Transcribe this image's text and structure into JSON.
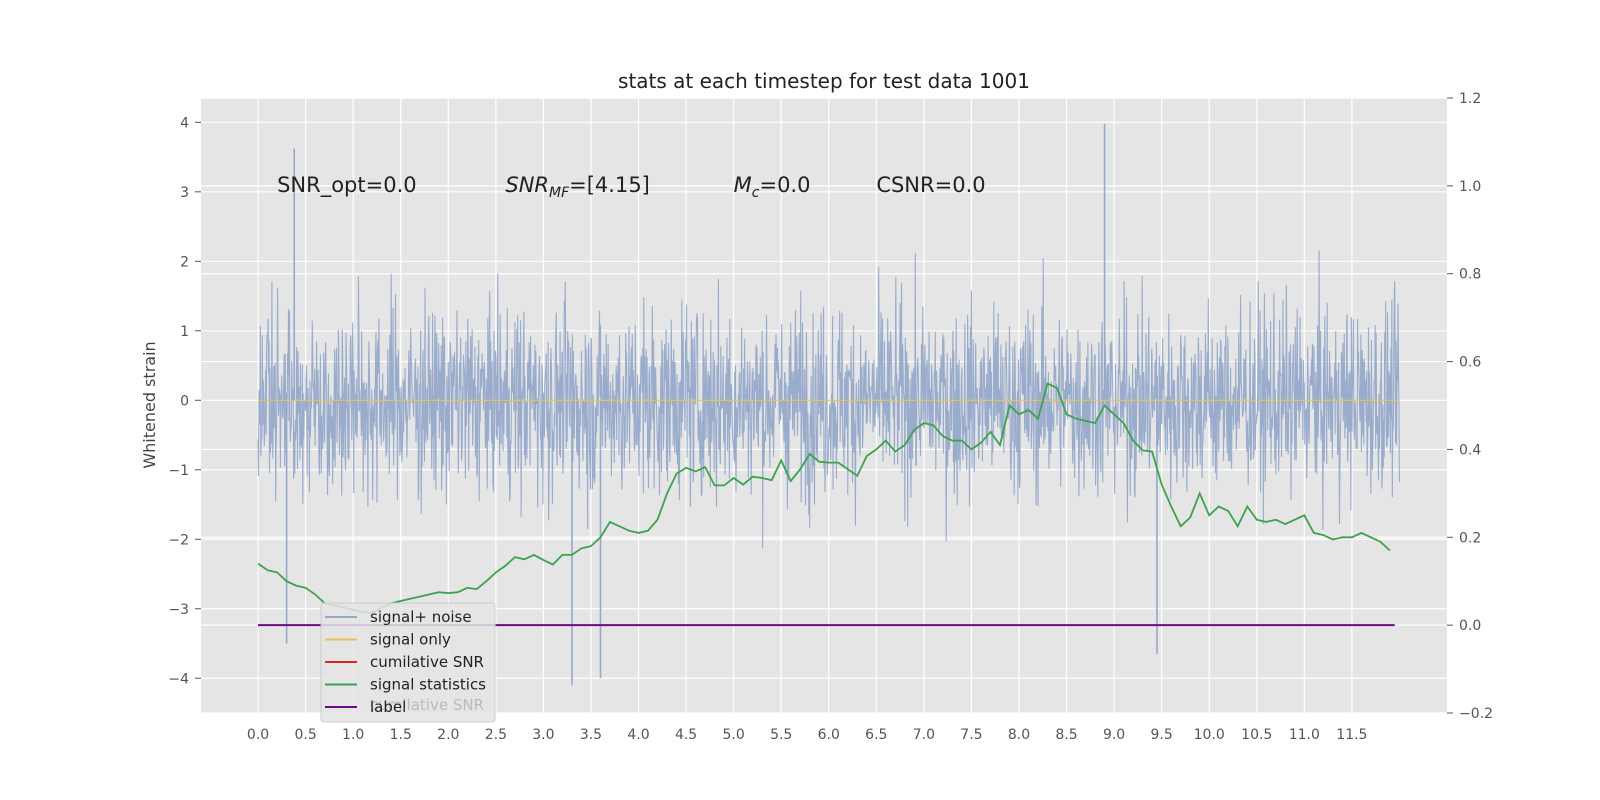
{
  "chart_data": {
    "type": "line",
    "title": "stats at each timestep for test data 1001",
    "ylabel": "Whitened strain",
    "xlabel": "",
    "xlim": [
      -0.6,
      12.5
    ],
    "ylim": [
      -4.5,
      4.35
    ],
    "y2lim": [
      -0.2,
      1.2
    ],
    "grid": true,
    "legend_placement": "lower-left",
    "x_ticks": [
      0.0,
      0.5,
      1.0,
      1.5,
      2.0,
      2.5,
      3.0,
      3.5,
      4.0,
      4.5,
      5.0,
      5.5,
      6.0,
      6.5,
      7.0,
      7.5,
      8.0,
      8.5,
      9.0,
      9.5,
      10.0,
      10.5,
      11.0,
      11.5
    ],
    "x_tick_labels": [
      "0.0",
      "0.5",
      "1.0",
      "1.5",
      "2.0",
      "2.5",
      "3.0",
      "3.5",
      "4.0",
      "4.5",
      "5.0",
      "5.5",
      "6.0",
      "6.5",
      "7.0",
      "7.5",
      "8.0",
      "8.5",
      "9.0",
      "9.5",
      "10.0",
      "10.5",
      "11.0",
      "11.5"
    ],
    "y_ticks": [
      4,
      3,
      2,
      1,
      0,
      -1,
      -2,
      -3,
      -4
    ],
    "y_tick_labels": [
      "4",
      "3",
      "2",
      "1",
      "0",
      "−1",
      "−2",
      "−3",
      "−4"
    ],
    "y2_ticks": [
      1.2,
      1.0,
      0.8,
      0.6,
      0.4,
      0.2,
      0.0,
      -0.2
    ],
    "y2_tick_labels": [
      "1.2",
      "1.0",
      "0.8",
      "0.6",
      "0.4",
      "0.2",
      "0.0",
      "−0.2"
    ],
    "annotations": [
      {
        "text": "SNR_opt=0.0",
        "x": 0.2,
        "y": 3.1
      },
      {
        "text": "SNR_MF=[4.15]",
        "x": 2.6,
        "y": 3.1
      },
      {
        "text": "M_c=0.0",
        "x": 5.0,
        "y": 3.1
      },
      {
        "text": "CSNR=0.0",
        "x": 6.5,
        "y": 3.1
      }
    ],
    "series": [
      {
        "name": "signal+ noise",
        "axis": "left",
        "color": "#96a9ca",
        "description": "dense whitened-noise trace, bulk roughly -2 to 2, spikes to about +4 and -4.1",
        "envelope_seed": 1001,
        "x_start": 0.0,
        "x_end": 12.0,
        "visible_extremes": [
          {
            "x": 0.3,
            "y": -3.5
          },
          {
            "x": 3.3,
            "y": -4.1
          },
          {
            "x": 3.6,
            "y": -4.0
          },
          {
            "x": 8.9,
            "y": 3.98
          },
          {
            "x": 9.45,
            "y": -3.65
          },
          {
            "x": 0.38,
            "y": 3.62
          }
        ]
      },
      {
        "name": "signal only",
        "axis": "left",
        "color": "#f0c050",
        "x": [
          0.0,
          12.0
        ],
        "y": [
          0.0,
          0.0
        ]
      },
      {
        "name": "cumilative SNR",
        "axis": "right",
        "color": "#d62728",
        "x": [],
        "y": []
      },
      {
        "name": "signal statistics",
        "axis": "right",
        "color": "#3da24e",
        "x": [
          0.0,
          0.1,
          0.2,
          0.3,
          0.4,
          0.5,
          0.6,
          0.7,
          0.8,
          0.9,
          1.0,
          1.1,
          1.2,
          1.3,
          1.4,
          1.5,
          1.6,
          1.7,
          1.8,
          1.9,
          2.0,
          2.1,
          2.2,
          2.3,
          2.4,
          2.5,
          2.6,
          2.7,
          2.8,
          2.9,
          3.0,
          3.1,
          3.2,
          3.3,
          3.4,
          3.5,
          3.6,
          3.7,
          3.8,
          3.9,
          4.0,
          4.1,
          4.2,
          4.3,
          4.4,
          4.5,
          4.6,
          4.7,
          4.8,
          4.9,
          5.0,
          5.1,
          5.2,
          5.3,
          5.4,
          5.5,
          5.6,
          5.7,
          5.8,
          5.9,
          6.0,
          6.1,
          6.2,
          6.3,
          6.4,
          6.5,
          6.6,
          6.7,
          6.8,
          6.9,
          7.0,
          7.1,
          7.2,
          7.3,
          7.4,
          7.5,
          7.6,
          7.7,
          7.8,
          7.9,
          8.0,
          8.1,
          8.2,
          8.3,
          8.4,
          8.5,
          8.6,
          8.7,
          8.8,
          8.9,
          9.0,
          9.1,
          9.2,
          9.3,
          9.4,
          9.5,
          9.6,
          9.7,
          9.8,
          9.9,
          10.0,
          10.1,
          10.2,
          10.3,
          10.4,
          10.5,
          10.6,
          10.7,
          10.8,
          10.9,
          11.0,
          11.1,
          11.2,
          11.3,
          11.4,
          11.5,
          11.6,
          11.7,
          11.8,
          11.9
        ],
        "y": [
          0.14,
          0.125,
          0.12,
          0.1,
          0.09,
          0.085,
          0.07,
          0.05,
          0.045,
          0.04,
          0.035,
          0.03,
          0.028,
          0.04,
          0.05,
          0.055,
          0.06,
          0.065,
          0.07,
          0.075,
          0.073,
          0.075,
          0.085,
          0.082,
          0.1,
          0.12,
          0.135,
          0.155,
          0.15,
          0.16,
          0.148,
          0.138,
          0.16,
          0.16,
          0.175,
          0.18,
          0.2,
          0.235,
          0.225,
          0.215,
          0.21,
          0.215,
          0.24,
          0.3,
          0.345,
          0.358,
          0.35,
          0.36,
          0.318,
          0.318,
          0.335,
          0.32,
          0.338,
          0.335,
          0.33,
          0.375,
          0.328,
          0.355,
          0.39,
          0.372,
          0.37,
          0.37,
          0.355,
          0.34,
          0.385,
          0.4,
          0.42,
          0.395,
          0.41,
          0.445,
          0.46,
          0.455,
          0.43,
          0.42,
          0.42,
          0.4,
          0.415,
          0.44,
          0.41,
          0.5,
          0.48,
          0.49,
          0.47,
          0.55,
          0.54,
          0.48,
          0.47,
          0.465,
          0.46,
          0.5,
          0.48,
          0.46,
          0.42,
          0.398,
          0.395,
          0.32,
          0.27,
          0.225,
          0.245,
          0.3,
          0.25,
          0.27,
          0.26,
          0.225,
          0.27,
          0.24,
          0.235,
          0.24,
          0.23,
          0.24,
          0.25,
          0.21,
          0.205,
          0.195,
          0.2,
          0.2,
          0.21,
          0.2,
          0.19,
          0.17
        ]
      },
      {
        "name": "label",
        "axis": "right",
        "color": "#6a0d83",
        "x": [
          0.0,
          11.95
        ],
        "y": [
          0.0,
          0.0
        ]
      }
    ],
    "legend": [
      "signal+ noise",
      "signal only",
      "cumilative SNR",
      "signal statistics",
      "label"
    ],
    "legend_ghost_text": "cumilative SNR"
  }
}
